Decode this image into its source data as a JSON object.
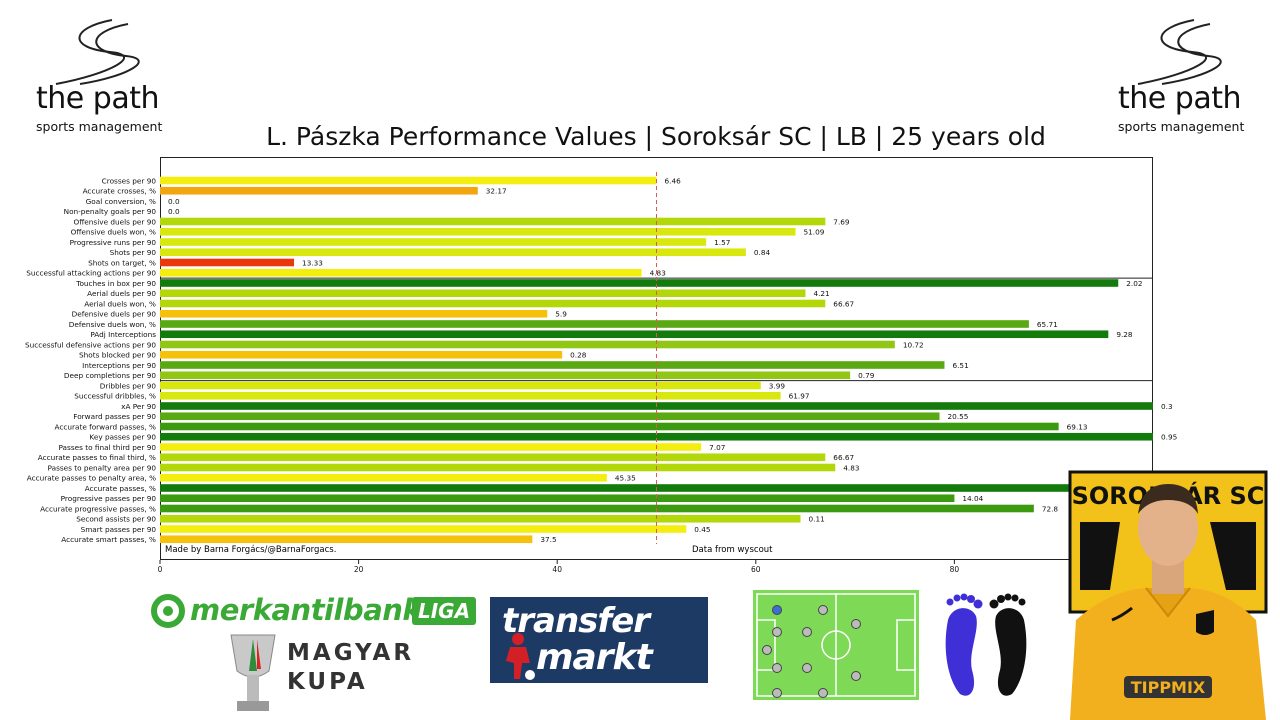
{
  "logo": {
    "brand": "the path",
    "sub": "sports management"
  },
  "title": "L. Pászka Performance Values |  Soroksár SC  |  LB  | 25 years old",
  "credit_left": "Made by Barna Forgács/@BarnaForgacs.",
  "credit_right": "Data from wyscout",
  "colors": {
    "red": "#e8380c",
    "orange": "#f3a50f",
    "amber": "#f6c10a",
    "yellow": "#f4ee10",
    "yellowgreen": "#d8e80e",
    "lime": "#b3d80a",
    "lightgreen": "#92c614",
    "green": "#5aa812",
    "midgreen": "#3c9a10",
    "darkgreen": "#137a0c",
    "pitch": "#7ed957",
    "feet_left": "#3f2fd6",
    "feet_right": "#111111",
    "merkantil": "#3aa935",
    "transfermarkt": "#1d3a65",
    "jersey": "#f2b01e"
  },
  "chart_data": {
    "type": "bar",
    "orientation": "horizontal",
    "title": "L. Pászka Performance Values |  Soroksár SC  |  LB  | 25 years old",
    "xlim": [
      0,
      100
    ],
    "x_ticks": [
      0,
      20,
      40,
      60,
      80
    ],
    "reference_line": 50,
    "grid": false,
    "group_separators_after": [
      9,
      19
    ],
    "bars": [
      {
        "label": "Crosses per 90",
        "percentile": 50,
        "value_label": "6.46",
        "color": "yellow"
      },
      {
        "label": "Accurate crosses, %",
        "percentile": 32,
        "value_label": "32.17",
        "color": "orange"
      },
      {
        "label": "Goal conversion, %",
        "percentile": 0,
        "value_label": "0.0",
        "color": "red"
      },
      {
        "label": "Non-penalty goals per 90",
        "percentile": 0,
        "value_label": "0.0",
        "color": "red"
      },
      {
        "label": "Offensive duels per 90",
        "percentile": 67,
        "value_label": "7.69",
        "color": "lime"
      },
      {
        "label": "Offensive duels won, %",
        "percentile": 64,
        "value_label": "51.09",
        "color": "yellowgreen"
      },
      {
        "label": "Progressive runs per 90",
        "percentile": 55,
        "value_label": "1.57",
        "color": "yellowgreen"
      },
      {
        "label": "Shots per 90",
        "percentile": 59,
        "value_label": "0.84",
        "color": "yellowgreen"
      },
      {
        "label": "Shots on target, %",
        "percentile": 13.5,
        "value_label": "13.33",
        "color": "red"
      },
      {
        "label": "Successful attacking actions per 90",
        "percentile": 48.5,
        "value_label": "4.83",
        "color": "yellow"
      },
      {
        "label": "Touches in box per 90",
        "percentile": 96.5,
        "value_label": "2.02",
        "color": "darkgreen"
      },
      {
        "label": "Aerial duels per 90",
        "percentile": 65,
        "value_label": "4.21",
        "color": "lime"
      },
      {
        "label": "Aerial duels won, %",
        "percentile": 67,
        "value_label": "66.67",
        "color": "lime"
      },
      {
        "label": "Defensive duels per 90",
        "percentile": 39,
        "value_label": "5.9",
        "color": "amber"
      },
      {
        "label": "Defensive duels won, %",
        "percentile": 87.5,
        "value_label": "65.71",
        "color": "green"
      },
      {
        "label": "PAdj Interceptions",
        "percentile": 95.5,
        "value_label": "9.28",
        "color": "darkgreen"
      },
      {
        "label": "Successful defensive actions per 90",
        "percentile": 74,
        "value_label": "10.72",
        "color": "lightgreen"
      },
      {
        "label": "Shots blocked per 90",
        "percentile": 40.5,
        "value_label": "0.28",
        "color": "amber"
      },
      {
        "label": "Interceptions per 90",
        "percentile": 79,
        "value_label": "6.51",
        "color": "green"
      },
      {
        "label": "Deep completions per 90",
        "percentile": 69.5,
        "value_label": "0.79",
        "color": "lightgreen"
      },
      {
        "label": "Dribbles per 90",
        "percentile": 60.5,
        "value_label": "3.99",
        "color": "yellowgreen"
      },
      {
        "label": "Successful dribbles, %",
        "percentile": 62.5,
        "value_label": "61.97",
        "color": "yellowgreen"
      },
      {
        "label": "xA Per 90",
        "percentile": 100,
        "value_label": "0.3",
        "color": "darkgreen"
      },
      {
        "label": "Forward passes per 90",
        "percentile": 78.5,
        "value_label": "20.55",
        "color": "green"
      },
      {
        "label": "Accurate forward passes, %",
        "percentile": 90.5,
        "value_label": "69.13",
        "color": "midgreen"
      },
      {
        "label": "Key passes per 90",
        "percentile": 100,
        "value_label": "0.95",
        "color": "darkgreen"
      },
      {
        "label": "Passes to final third per 90",
        "percentile": 54.5,
        "value_label": "7.07",
        "color": "yellow"
      },
      {
        "label": "Accurate passes to final third, %",
        "percentile": 67,
        "value_label": "66.67",
        "color": "lime"
      },
      {
        "label": "Passes to penalty area per 90",
        "percentile": 68,
        "value_label": "4.83",
        "color": "lime"
      },
      {
        "label": "Accurate passes to penalty area, %",
        "percentile": 45,
        "value_label": "45.35",
        "color": "yellow"
      },
      {
        "label": "Accurate passes, %",
        "percentile": 91.5,
        "value_label": "",
        "color": "darkgreen"
      },
      {
        "label": "Progressive passes per 90",
        "percentile": 80,
        "value_label": "14.04",
        "color": "midgreen"
      },
      {
        "label": "Accurate progressive passes, %",
        "percentile": 88,
        "value_label": "72.8",
        "color": "midgreen"
      },
      {
        "label": "Second assists per 90",
        "percentile": 64.5,
        "value_label": "0.11",
        "color": "lime"
      },
      {
        "label": "Smart passes per 90",
        "percentile": 53,
        "value_label": "0.45",
        "color": "yellow"
      },
      {
        "label": "Accurate smart passes, %",
        "percentile": 37.5,
        "value_label": "37.5",
        "color": "amber"
      }
    ]
  },
  "bottom": {
    "merkantil_text": "merkantilbank",
    "merkantil_liga": "LIGA",
    "kupa_line1": "MAGYAR",
    "kupa_line2": "KUPA",
    "tm_line1": "transfer",
    "tm_line2": "markt",
    "badge_text": "SOROKSÁR SC",
    "jersey_sponsor": "TIPPMIX"
  }
}
